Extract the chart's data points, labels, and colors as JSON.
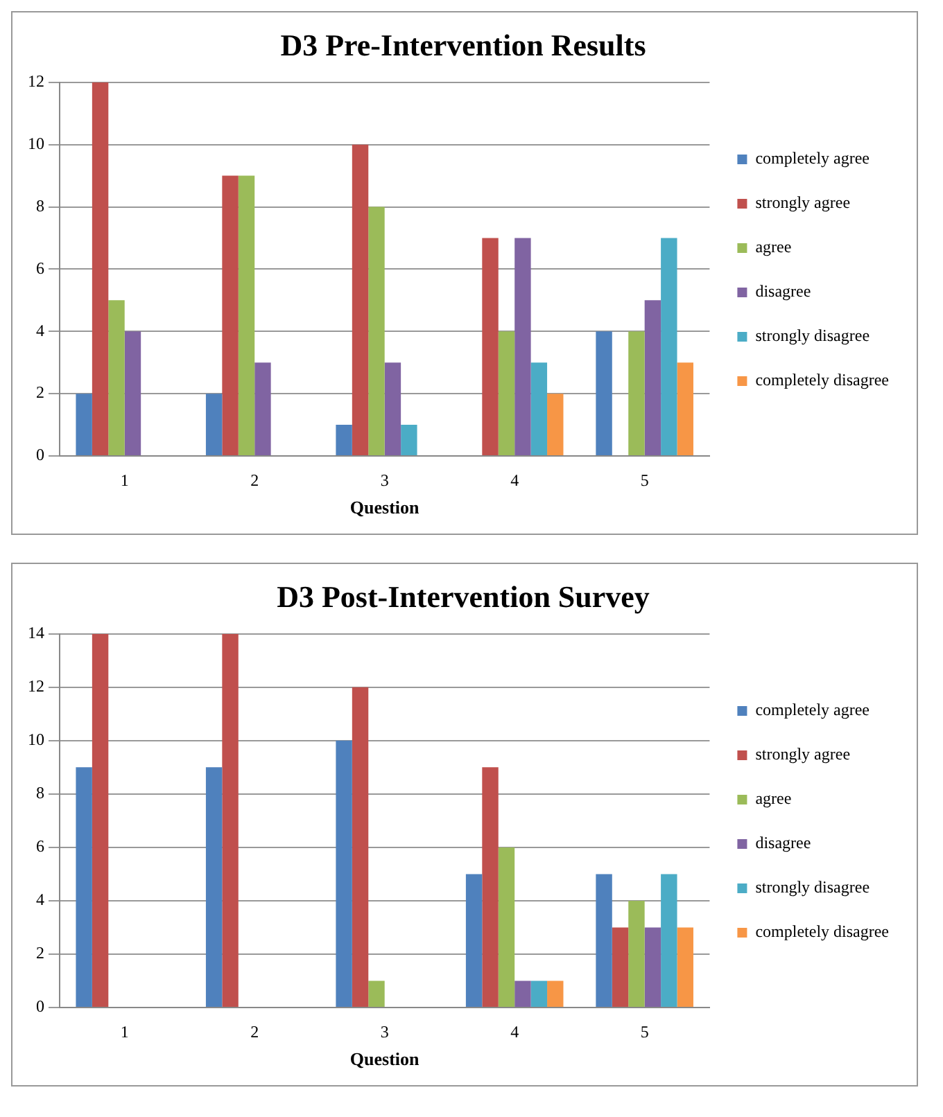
{
  "chart_data": [
    {
      "type": "bar",
      "title": "D3 Pre-Intervention Results",
      "xlabel": "Question",
      "categories": [
        "1",
        "2",
        "3",
        "4",
        "5"
      ],
      "ylim": [
        0,
        12
      ],
      "yticks": [
        0,
        2,
        4,
        6,
        8,
        10,
        12
      ],
      "grid": "y",
      "legend": "right",
      "series": [
        {
          "name": "completely agree",
          "color": "#4f81bd",
          "values": [
            2,
            2,
            1,
            0,
            4
          ]
        },
        {
          "name": "strongly agree",
          "color": "#c0504d",
          "values": [
            12,
            9,
            10,
            7,
            0
          ]
        },
        {
          "name": "agree",
          "color": "#9bbb59",
          "values": [
            5,
            9,
            8,
            4,
            4
          ]
        },
        {
          "name": "disagree",
          "color": "#8064a2",
          "values": [
            4,
            3,
            3,
            7,
            5
          ]
        },
        {
          "name": "strongly disagree",
          "color": "#4bacc6",
          "values": [
            0,
            0,
            1,
            3,
            7
          ]
        },
        {
          "name": "completely disagree",
          "color": "#f79646",
          "values": [
            0,
            0,
            0,
            2,
            3
          ]
        }
      ]
    },
    {
      "type": "bar",
      "title": "D3 Post-Intervention Survey",
      "xlabel": "Question",
      "categories": [
        "1",
        "2",
        "3",
        "4",
        "5"
      ],
      "ylim": [
        0,
        14
      ],
      "yticks": [
        0,
        2,
        4,
        6,
        8,
        10,
        12,
        14
      ],
      "grid": "y",
      "legend": "right",
      "series": [
        {
          "name": "completely agree",
          "color": "#4f81bd",
          "values": [
            9,
            9,
            10,
            5,
            5
          ]
        },
        {
          "name": "strongly agree",
          "color": "#c0504d",
          "values": [
            14,
            14,
            12,
            9,
            3
          ]
        },
        {
          "name": "agree",
          "color": "#9bbb59",
          "values": [
            0,
            0,
            1,
            6,
            4
          ]
        },
        {
          "name": "disagree",
          "color": "#8064a2",
          "values": [
            0,
            0,
            0,
            1,
            3
          ]
        },
        {
          "name": "strongly disagree",
          "color": "#4bacc6",
          "values": [
            0,
            0,
            0,
            1,
            5
          ]
        },
        {
          "name": "completely disagree",
          "color": "#f79646",
          "values": [
            0,
            0,
            0,
            1,
            3
          ]
        }
      ]
    }
  ]
}
